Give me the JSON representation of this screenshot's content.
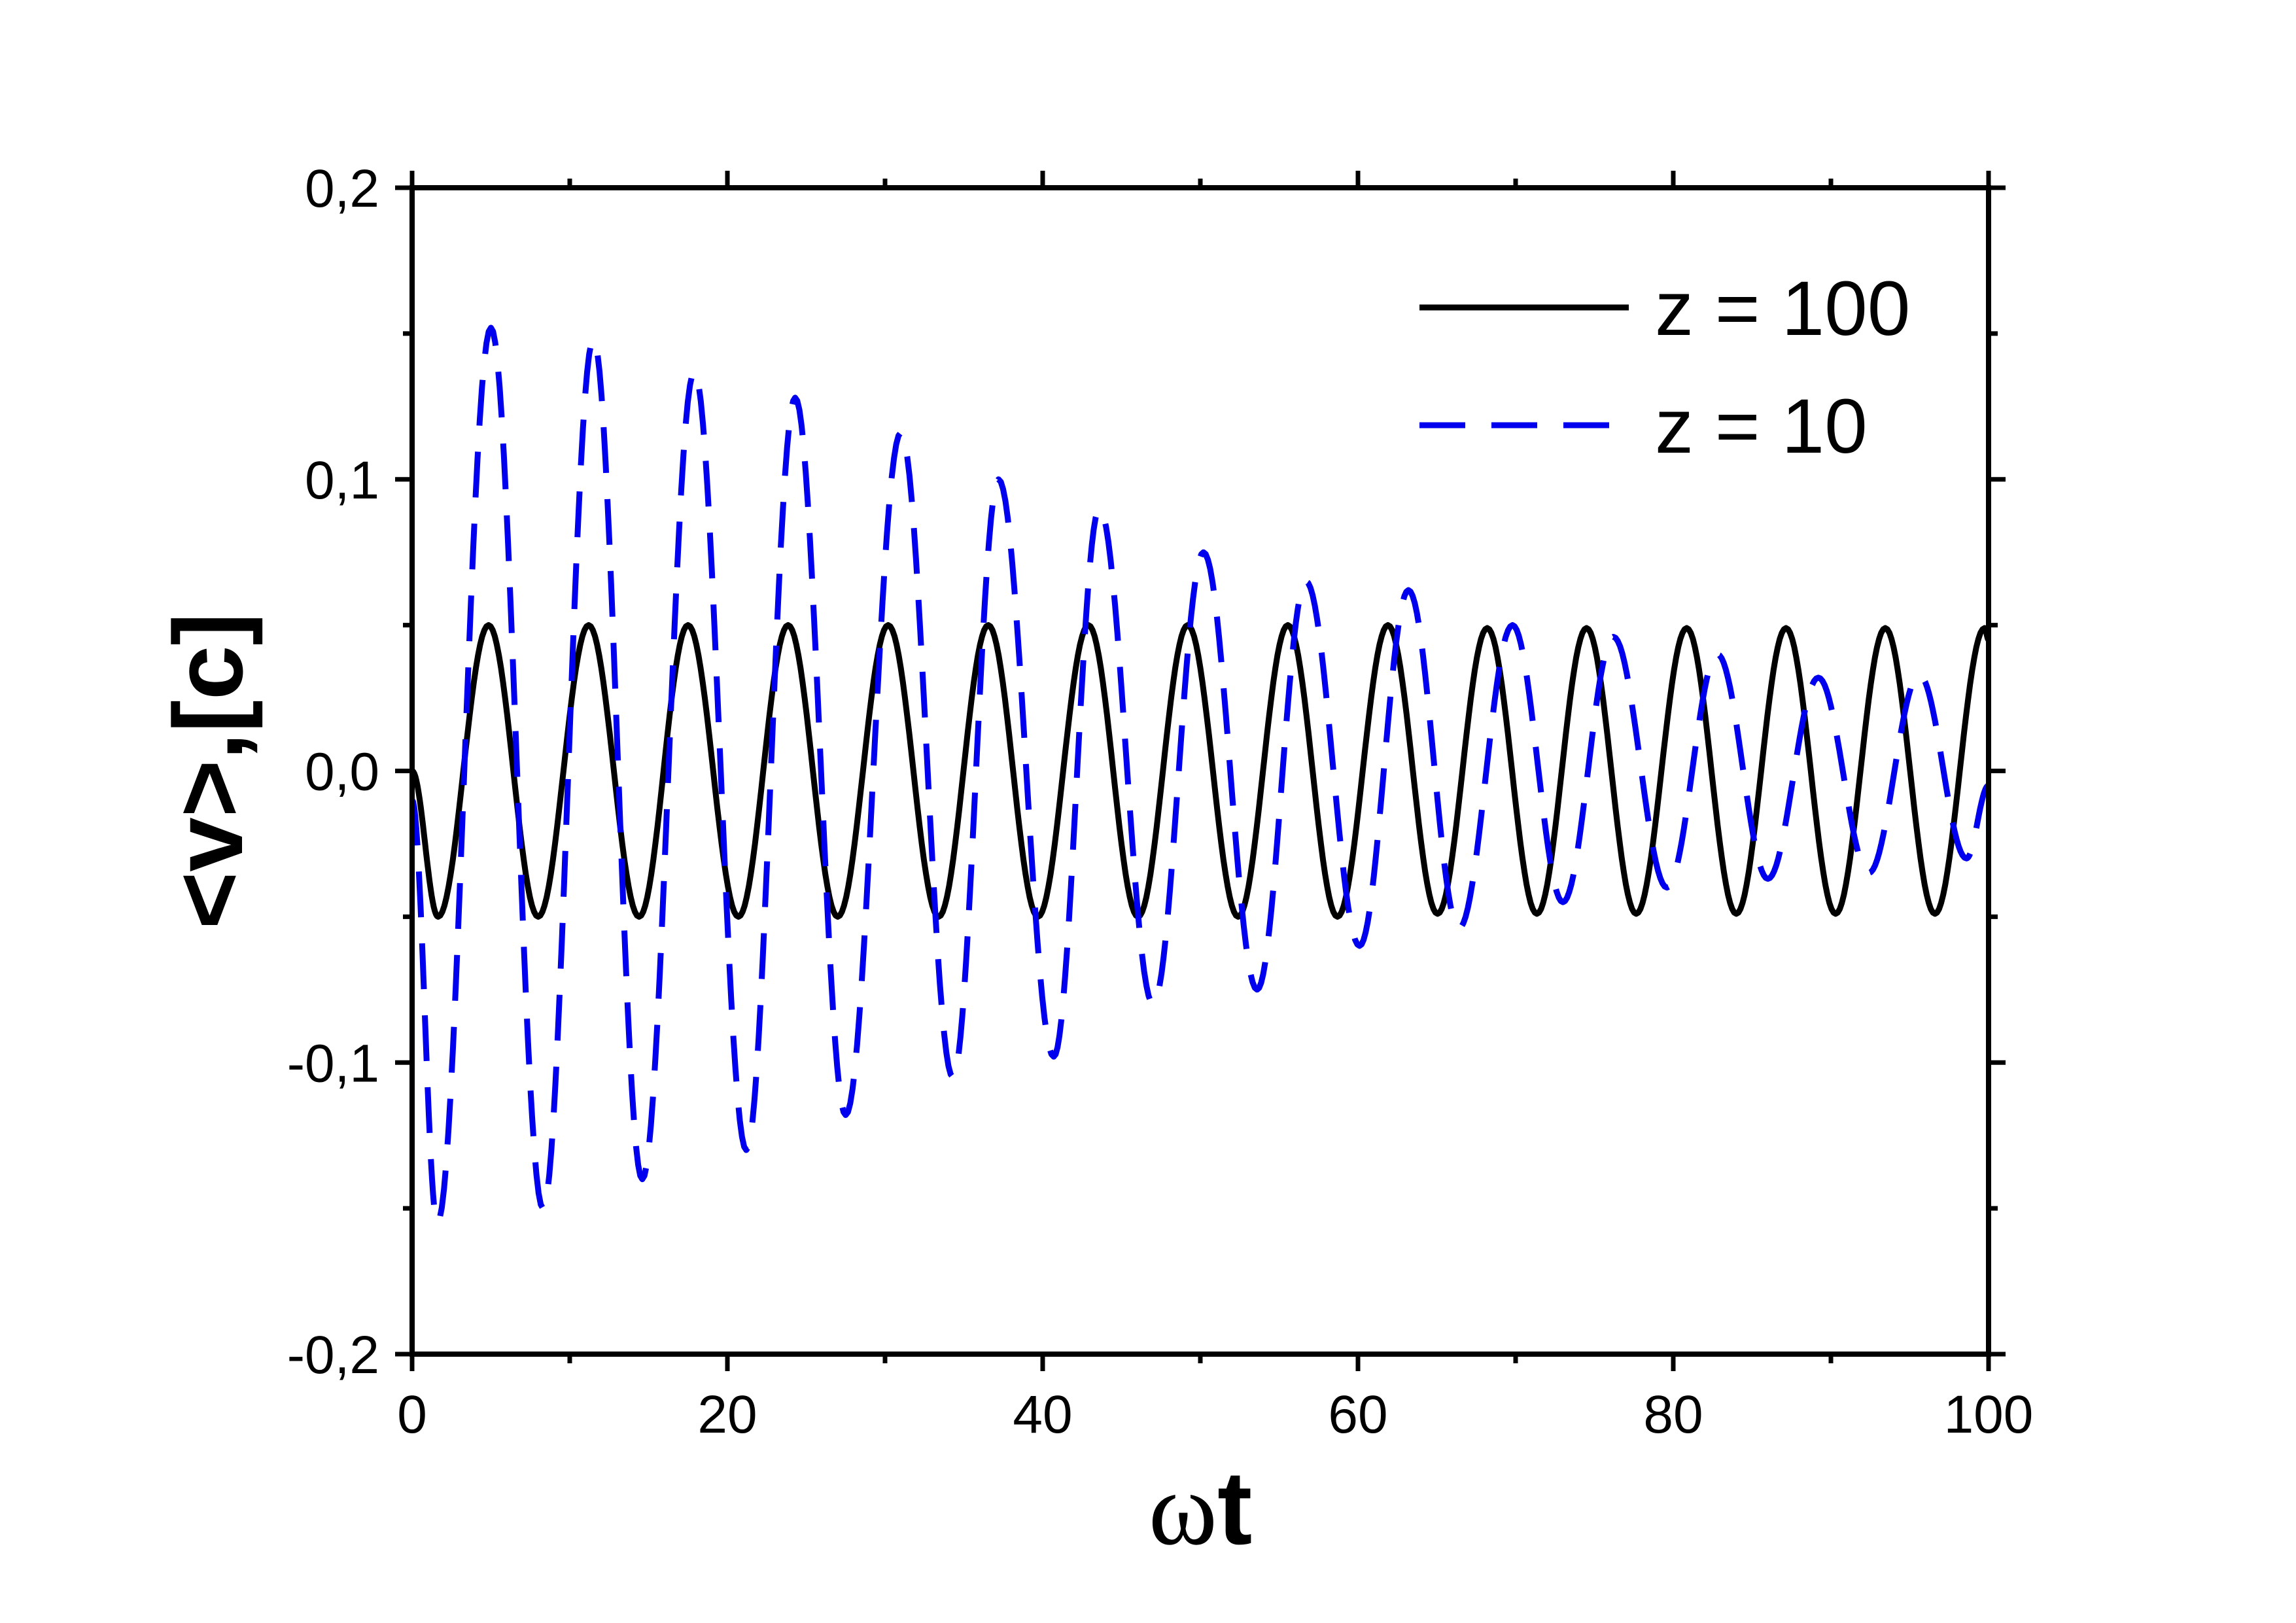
{
  "chart_data": {
    "type": "line",
    "title": "",
    "xlabel": "ωt",
    "ylabel": "<v>,[c]",
    "xlim": [
      0,
      100
    ],
    "ylim": [
      -0.2,
      0.2
    ],
    "x_ticks": [
      0,
      20,
      40,
      60,
      80,
      100
    ],
    "x_tick_labels": [
      "0",
      "20",
      "40",
      "60",
      "80",
      "100"
    ],
    "y_ticks": [
      -0.2,
      -0.1,
      0.0,
      0.1,
      0.2
    ],
    "y_tick_labels": [
      "-0,2",
      "-0,1",
      "0,0",
      "0,1",
      "0,2"
    ],
    "grid": false,
    "legend_position": "top-right",
    "series": [
      {
        "name": "z = 100",
        "color": "#000000",
        "dash": "solid",
        "x": [
          0,
          1.65,
          4.85,
          8.0,
          11.2,
          14.4,
          17.5,
          20.7,
          23.85,
          27.0,
          30.2,
          33.4,
          36.55,
          39.7,
          42.9,
          46.05,
          49.2,
          52.4,
          55.55,
          58.7,
          61.9,
          65.05,
          68.2,
          71.35,
          74.5,
          77.65,
          80.85,
          84.0,
          87.15,
          90.3,
          93.45,
          96.6,
          99.75,
          100
        ],
        "y": [
          0.0,
          -0.05,
          0.05,
          -0.05,
          0.05,
          -0.05,
          0.05,
          -0.05,
          0.05,
          -0.05,
          0.05,
          -0.05,
          0.05,
          -0.05,
          0.05,
          -0.05,
          0.05,
          -0.05,
          0.05,
          -0.05,
          0.05,
          -0.049,
          0.049,
          -0.049,
          0.049,
          -0.049,
          0.049,
          -0.049,
          0.049,
          -0.049,
          0.049,
          -0.049,
          0.049,
          0.045
        ]
      },
      {
        "name": "z = 10",
        "color": "#0000ee",
        "dash": "dashed",
        "x": [
          0,
          1.6,
          5.0,
          8.3,
          11.5,
          14.6,
          17.9,
          21.2,
          24.3,
          27.5,
          31.0,
          34.3,
          37.2,
          40.7,
          43.6,
          47.0,
          50.2,
          53.6,
          56.7,
          60.1,
          63.2,
          66.4,
          69.8,
          73.0,
          76.2,
          79.6,
          82.8,
          86.0,
          89.2,
          92.4,
          95.6,
          98.6,
          100
        ],
        "y": [
          -0.01,
          -0.155,
          0.152,
          -0.15,
          0.148,
          -0.14,
          0.137,
          -0.13,
          0.128,
          -0.118,
          0.116,
          -0.105,
          0.1,
          -0.098,
          0.09,
          -0.08,
          0.075,
          -0.075,
          0.065,
          -0.06,
          0.062,
          -0.054,
          0.05,
          -0.045,
          0.046,
          -0.04,
          0.04,
          -0.037,
          0.032,
          -0.035,
          0.033,
          -0.03,
          -0.005
        ]
      }
    ]
  }
}
